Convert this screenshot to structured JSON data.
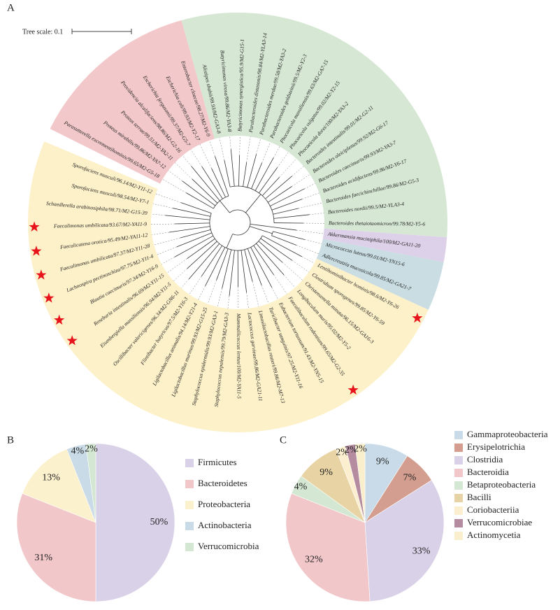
{
  "tree": {
    "panel_label": "A",
    "scale_label": "Tree scale: 0.1",
    "clades": [
      {
        "color": "#f2c8ca",
        "leaves": [
          {
            "label": "Parasutterella excrementihominis/99.65/M2-G5-18"
          },
          {
            "label": "Proteus mirabilis/99.86/M2-YA7-12"
          },
          {
            "label": "Proteus terrae/99.51/M2-YA2-11"
          },
          {
            "label": "Providencia alcalifaciens/98.86/M2-G2-16"
          },
          {
            "label": "Escherichia fergusonii/99.37/M2-G5-7"
          },
          {
            "label": "Escherichia coli/99.93/M2-Y2-17"
          },
          {
            "label": "Enterobacter cloacae/98.27/M2-Y6-9"
          }
        ]
      },
      {
        "color": "#d6e8d4",
        "leaves": [
          {
            "label": "Alistipes shahii/99.93/M2-GA3-8"
          },
          {
            "label": "Butyricimonas virosa/99.86/M2-YA3-8"
          },
          {
            "label": "Butyricimonas synergistica/95.9/M2-G15-1"
          },
          {
            "label": "Parabacteroides distasonis/98.84/M2-YLA3-14"
          },
          {
            "label": "Parabacteroides merdae/99.58/M2-YA3-2"
          },
          {
            "label": "Parabacteroides goldsteinii/99.5/M2-Y2-3"
          },
          {
            "label": "Phocaeicola massiliensis/99.63/M2-GA7-15"
          },
          {
            "label": "Phocaeicola vulgatus/99.02/M2-Y2-15"
          },
          {
            "label": "Phocaeicola dorei/100/M2-YA3-2"
          },
          {
            "label": "Bacteroides intestinalis/99.01/M2-G2-11"
          },
          {
            "label": "Bacteroides oleiciplenus/99.92/M2-G6-17"
          },
          {
            "label": "Bacteroides caecimuris/99.93/M2-YA3-7"
          },
          {
            "label": "Bacteroides acidifaciens/99.86/M2-Y6-17"
          },
          {
            "label": "Bacteroides faecichinchillae/99.86/M2-G5-3"
          },
          {
            "label": "Bacteroides nordii/99.5/M2-YLA3-4"
          },
          {
            "label": "Bacteroides thetaiotaomicron/99.78/M2-Y5-6"
          }
        ]
      },
      {
        "color": "#ddd1e9",
        "leaves": [
          {
            "label": "Akkermansia muciniphila/100/M2-GA11-20"
          }
        ]
      },
      {
        "color": "#c9dde3",
        "leaves": [
          {
            "label": "Micrococcus luteus/99.01/M2-YN15-6"
          },
          {
            "label": "Adlercreutzia mucosicola/99.85/M2-GA21-7"
          }
        ]
      },
      {
        "color": "#fdf1c9",
        "leaves": [
          {
            "label": "Lentihominibacter hominis/98.6/M2-Y6-26",
            "star": true
          },
          {
            "label": "Clostridium sporogenes/99.85/M2-Y6-59"
          },
          {
            "label": "Christensenella minuta/96.15/M2-GA16-3"
          },
          {
            "label": "Longibaculum muris/95.02/M2-Y5-2"
          },
          {
            "label": "Faecalibaculum rodentium/99.65/M2-G2-35",
            "star": true
          },
          {
            "label": "Eubacterium tortuosum/91.43/M2-YN5-15"
          },
          {
            "label": "Turicibacter sanguinis/97.25/M2-Y11-16"
          },
          {
            "label": "Limosilactobacillus reuteri/99.86/M2-M7-13"
          },
          {
            "label": "Lactococcus garvieae/99.86/M2-GA21-11"
          },
          {
            "label": "Mammaliicoccus lentus/100/M2-YA11-5"
          },
          {
            "label": "Staphylococcus nepalensis/99.79/M2-GA3-3"
          },
          {
            "label": "Staphylococcus epidermidis/99.93/M2-GA3-1"
          },
          {
            "label": "Ligilactobacillus murinus/99.93/M2-G15-25"
          },
          {
            "label": "Ligilactobacillus animalis/94.14/M2-Y21-4"
          },
          {
            "label": "Flintibacter butyricus/97.5/M2-Y16-3"
          },
          {
            "label": "Oscillibacter valericigenes/96.34/M2-GN6-11"
          },
          {
            "label": "Eisenbergiella massiliensis/96.94/M2-Y11-5"
          },
          {
            "label": "Roseburia intestinalis/96.69/M2-Y11-15",
            "star": true
          },
          {
            "label": "Blautia caecimuris/97.34/M2-Y16-9",
            "star": true
          },
          {
            "label": "Lachnospira pectinoschiza/97.75/M2-Y11-4",
            "star": true
          },
          {
            "label": "Faecalimonas umbilicata/97.37/M2-Y11-28",
            "star": true
          },
          {
            "label": "Faecalicatena orotica/95.49/M2-YA11-12",
            "star": true
          },
          {
            "label": "Faecalimonas umbilicata/93.67/M2-YA11-9",
            "star": true
          },
          {
            "label": "Schaedlerella arabinosiphila/98.71/M2-G15-39"
          },
          {
            "label": "Sporofaciens musculi/98.54/M2-Y7-1"
          },
          {
            "label": "Sporofaciens musculi/96.14/M2-Y11-12"
          }
        ]
      }
    ]
  },
  "chart_data": [
    {
      "type": "pie",
      "panel_label": "B",
      "categories": [
        "Firmicutes",
        "Bacteroidetes",
        "Proteobacteria",
        "Actinobacteria",
        "Verrucomicrobia"
      ],
      "values": [
        50,
        31,
        13,
        4,
        2
      ],
      "value_labels": [
        "50%",
        "31%",
        "13%",
        "4%",
        "2%"
      ],
      "colors": [
        "#d9d1e8",
        "#f1c7ca",
        "#fcf1cd",
        "#c9dbe7",
        "#d4e7d2"
      ]
    },
    {
      "type": "pie",
      "panel_label": "C",
      "categories": [
        "Gammaproteobacteria",
        "Erysipelotrichia",
        "Clostridia",
        "Bacteroidia",
        "Betaproteobacteria",
        "Bacilli",
        "Coriobacteriia",
        "Verrucomicrobiae",
        "Actinomycetia"
      ],
      "values": [
        9,
        7,
        33,
        32,
        4,
        9,
        2,
        2,
        2
      ],
      "value_labels": [
        "9%",
        "7%",
        "33%",
        "32%",
        "4%",
        "9%",
        "2%",
        "2%",
        "2%"
      ],
      "colors": [
        "#c9dbe8",
        "#d39e8f",
        "#d9d1e8",
        "#f1c7ca",
        "#d4e7d2",
        "#e7d3a3",
        "#fcefcf",
        "#b48b9f",
        "#f9efcc"
      ]
    }
  ]
}
